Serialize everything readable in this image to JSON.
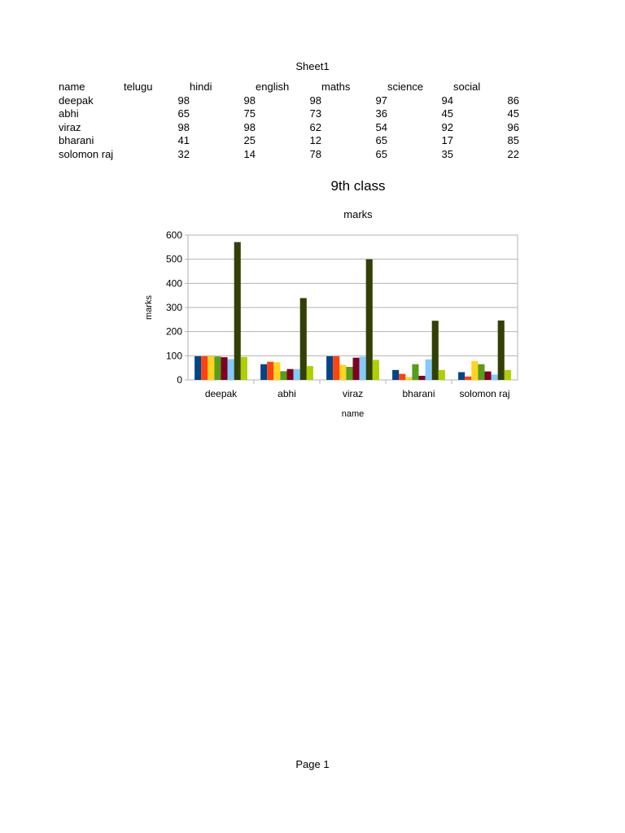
{
  "sheet": {
    "title": "Sheet1"
  },
  "table": {
    "headers": [
      "name",
      "telugu",
      "hindi",
      "english",
      "maths",
      "science",
      "social"
    ],
    "rows": [
      {
        "name": "deepak",
        "values": [
          98,
          98,
          98,
          97,
          94,
          86
        ]
      },
      {
        "name": "abhi",
        "values": [
          65,
          75,
          73,
          36,
          45,
          45
        ]
      },
      {
        "name": "viraz",
        "values": [
          98,
          98,
          62,
          54,
          92,
          96
        ]
      },
      {
        "name": "bharani",
        "values": [
          41,
          25,
          12,
          65,
          17,
          85
        ]
      },
      {
        "name": "solomon raj",
        "values": [
          32,
          14,
          78,
          65,
          35,
          22
        ]
      }
    ]
  },
  "chart_data": {
    "type": "bar",
    "title": "9th class",
    "subtitle": "marks",
    "xlabel": "name",
    "ylabel": "marks",
    "ylim": [
      0,
      600
    ],
    "yticks": [
      0,
      100,
      200,
      300,
      400,
      500,
      600
    ],
    "grid": true,
    "categories": [
      "deepak",
      "abhi",
      "viraz",
      "bharani",
      "solomon raj"
    ],
    "series": [
      {
        "values": [
          98,
          65,
          98,
          41,
          32
        ],
        "color": "#004586"
      },
      {
        "values": [
          98,
          75,
          98,
          25,
          14
        ],
        "color": "#ff420e"
      },
      {
        "values": [
          98,
          73,
          62,
          12,
          78
        ],
        "color": "#ffd320"
      },
      {
        "values": [
          97,
          36,
          54,
          65,
          65
        ],
        "color": "#579d1c"
      },
      {
        "values": [
          94,
          45,
          92,
          17,
          35
        ],
        "color": "#7e0021"
      },
      {
        "values": [
          86,
          45,
          96,
          85,
          22
        ],
        "color": "#83caff"
      },
      {
        "values": [
          571,
          339,
          500,
          245,
          246
        ],
        "color": "#314004"
      },
      {
        "values": [
          95,
          57,
          83,
          41,
          41
        ],
        "color": "#aecf00"
      }
    ]
  },
  "footer": {
    "page_label": "Page 1"
  }
}
